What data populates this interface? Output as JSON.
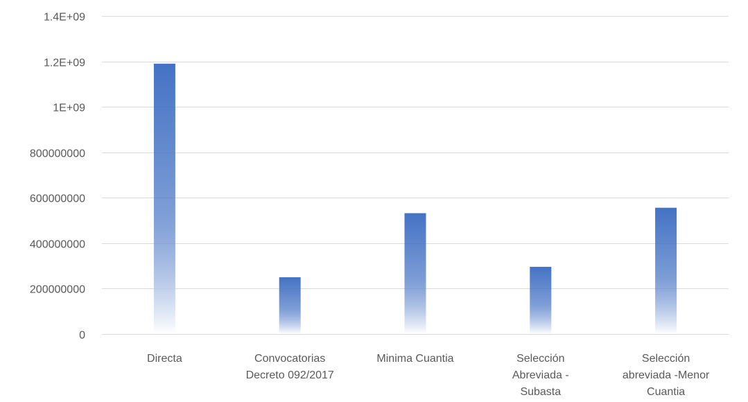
{
  "chart_data": {
    "type": "bar",
    "title": "",
    "xlabel": "",
    "ylabel": "",
    "categories": [
      [
        "Directa"
      ],
      [
        "Convocatorias",
        "Decreto 092/2017"
      ],
      [
        "Minima Cuantia"
      ],
      [
        "Selección",
        "Abreviada -",
        "Subasta"
      ],
      [
        "Selección",
        "abreviada -Menor",
        "Cuantia"
      ]
    ],
    "values": [
      1190000000,
      250000000,
      532000000,
      296000000,
      556000000
    ],
    "ylim": [
      0,
      1400000000
    ],
    "yticks": [
      {
        "value": 0,
        "label": "0"
      },
      {
        "value": 200000000,
        "label": "200000000"
      },
      {
        "value": 400000000,
        "label": "400000000"
      },
      {
        "value": 600000000,
        "label": "600000000"
      },
      {
        "value": 800000000,
        "label": "800000000"
      },
      {
        "value": 1000000000,
        "label": "1E+09"
      },
      {
        "value": 1200000000,
        "label": "1.2E+09"
      },
      {
        "value": 1400000000,
        "label": "1.4E+09"
      }
    ],
    "grid": true,
    "legend": "none",
    "colors": {
      "bar": "#4472c4",
      "bar_fade": "#ffffff",
      "grid": "#d9d9d9",
      "text": "#595959"
    }
  }
}
